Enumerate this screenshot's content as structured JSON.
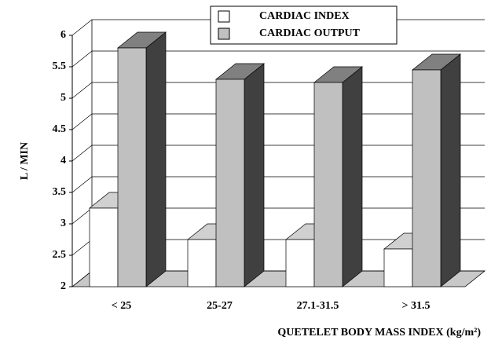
{
  "chart_data": {
    "type": "bar3d",
    "categories": [
      "< 25",
      "25-27",
      "27.1-31.5",
      "> 31.5"
    ],
    "series": [
      {
        "name": "CARDIAC INDEX",
        "color": "#ffffff",
        "values": [
          3.25,
          2.75,
          2.75,
          2.6
        ]
      },
      {
        "name": "CARDIAC OUTPUT",
        "color": "#c0c0c0",
        "values": [
          5.8,
          5.3,
          5.25,
          5.45
        ]
      }
    ],
    "ylim": [
      2,
      6
    ],
    "yticks": [
      2,
      2.5,
      3,
      3.5,
      4,
      4.5,
      5,
      5.5,
      6
    ],
    "ylabel": "L / MIN",
    "xlabel": "QUETELET BODY MASS INDEX (kg/m²)",
    "grid": true,
    "legend": "top"
  }
}
